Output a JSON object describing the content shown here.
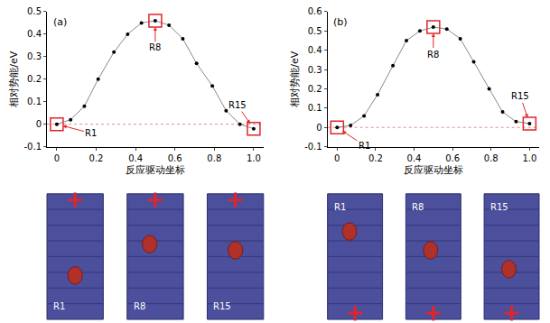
{
  "chart_data": [
    {
      "type": "line",
      "label": "(a)",
      "x": [
        0,
        0.07,
        0.14,
        0.21,
        0.29,
        0.36,
        0.43,
        0.5,
        0.57,
        0.64,
        0.71,
        0.79,
        0.86,
        0.93,
        1.0
      ],
      "values": [
        0,
        0.02,
        0.08,
        0.2,
        0.32,
        0.4,
        0.45,
        0.46,
        0.44,
        0.38,
        0.27,
        0.17,
        0.06,
        0.0,
        -0.02
      ],
      "color": "#000000",
      "marker": "circle",
      "xlim": [
        -0.05,
        1.05
      ],
      "xticks": [
        0,
        0.2,
        0.4,
        0.6,
        0.8,
        {
          "value": 1,
          "label": "1.0"
        }
      ],
      "ylim": [
        -0.1,
        0.5
      ],
      "yticks": [
        -0.1,
        0,
        0.1,
        0.2,
        0.3,
        0.4,
        0.5
      ],
      "x_label": "反应驱动坐标",
      "y_label": "相对势能/eV",
      "hline": 0,
      "highlights": {
        "x": [
          0,
          0.5,
          1.0
        ],
        "y": [
          0,
          0.46,
          -0.02
        ],
        "labels": [
          "R1",
          "R8",
          "R15"
        ],
        "marker": "square-open",
        "color": "#e0252b"
      },
      "structure_labels": [
        "R1",
        "R8",
        "R15"
      ]
    },
    {
      "type": "line",
      "label": "(b)",
      "x": [
        0,
        0.07,
        0.14,
        0.21,
        0.29,
        0.36,
        0.43,
        0.5,
        0.57,
        0.64,
        0.71,
        0.79,
        0.86,
        0.93,
        1.0
      ],
      "values": [
        0,
        0.01,
        0.06,
        0.17,
        0.32,
        0.45,
        0.5,
        0.52,
        0.51,
        0.46,
        0.34,
        0.2,
        0.08,
        0.03,
        0.02
      ],
      "color": "#000000",
      "marker": "circle",
      "xlim": [
        -0.05,
        1.05
      ],
      "xticks": [
        0,
        0.2,
        0.4,
        0.6,
        0.8,
        {
          "value": 1,
          "label": "1.0"
        }
      ],
      "ylim": [
        -0.1,
        0.6
      ],
      "yticks": [
        -0.1,
        0,
        0.1,
        0.2,
        0.3,
        0.4,
        0.5,
        0.6
      ],
      "x_label": "反应驱动坐标",
      "y_label": "相对势能/eV",
      "hline": 0,
      "highlights": {
        "x": [
          0,
          0.5,
          1.0
        ],
        "y": [
          0,
          0.52,
          0.02
        ],
        "labels": [
          "R1",
          "R8",
          "R15"
        ],
        "marker": "square-open",
        "color": "#e0252b"
      },
      "structure_labels": [
        "R1",
        "R8",
        "R15"
      ]
    }
  ]
}
